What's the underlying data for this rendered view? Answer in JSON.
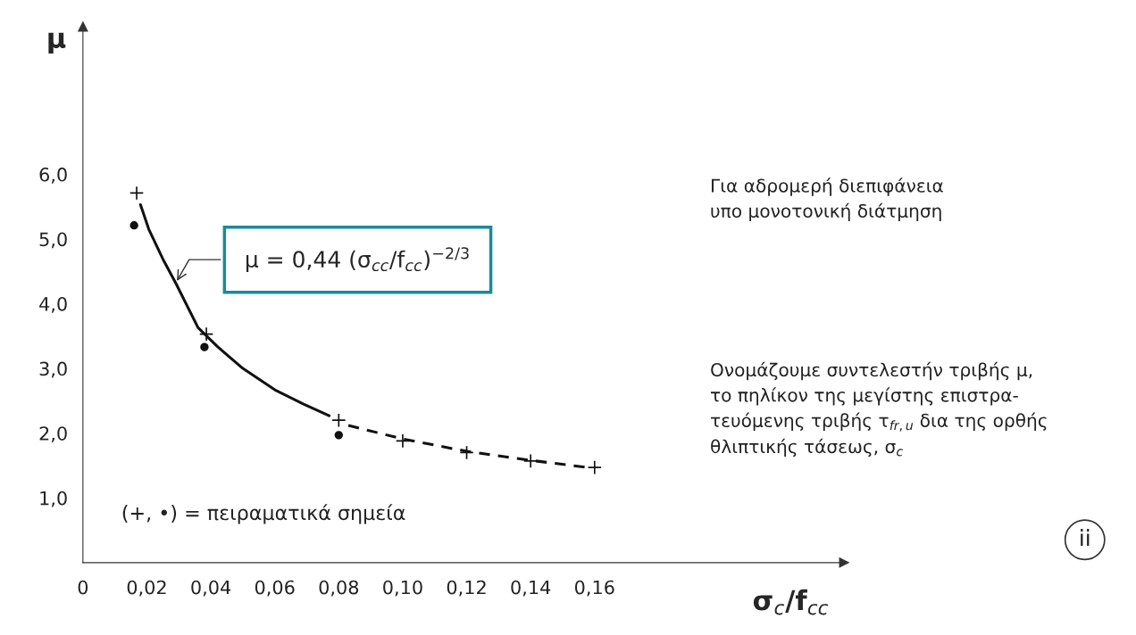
{
  "chart_data": {
    "type": "scatter",
    "xlabel": "σ$_{c}$/f$_{cc}$",
    "ylabel": "μ",
    "xlim": [
      0,
      0.238
    ],
    "ylim": [
      0,
      8.28
    ],
    "xticks": [
      {
        "value": 0,
        "label": "0"
      },
      {
        "value": 0.02,
        "label": "0,02"
      },
      {
        "value": 0.04,
        "label": "0,04"
      },
      {
        "value": 0.06,
        "label": "0,06"
      },
      {
        "value": 0.08,
        "label": "0,08"
      },
      {
        "value": 0.1,
        "label": "0,10"
      },
      {
        "value": 0.12,
        "label": "0,12"
      },
      {
        "value": 0.14,
        "label": "0,14"
      },
      {
        "value": 0.16,
        "label": "0,16"
      }
    ],
    "yticks": [
      {
        "value": 1,
        "label": "1,0"
      },
      {
        "value": 2,
        "label": "2,0"
      },
      {
        "value": 3,
        "label": "3,0"
      },
      {
        "value": 4,
        "label": "4,0"
      },
      {
        "value": 5,
        "label": "5,0"
      },
      {
        "value": 6,
        "label": "6,0"
      }
    ],
    "grid": false,
    "legend": false,
    "series": [
      {
        "type": "line",
        "color": "#111111",
        "line_style": "solid",
        "marker": "none",
        "x": [
          0.018,
          0.0206,
          0.025,
          0.029,
          0.036,
          0.042,
          0.05,
          0.06,
          0.069,
          0.077
        ],
        "values": [
          5.53,
          5.15,
          4.69,
          4.32,
          3.63,
          3.34,
          3.0,
          2.67,
          2.45,
          2.27
        ]
      },
      {
        "type": "line",
        "color": "#111111",
        "line_style": "dashed",
        "marker": "none",
        "x": [
          0.083,
          0.1,
          0.12,
          0.14,
          0.158
        ],
        "values": [
          2.12,
          1.91,
          1.72,
          1.58,
          1.47
        ]
      },
      {
        "color": "#111111",
        "marker": "cross",
        "x": [
          0.0168,
          0.0386,
          0.08,
          0.1,
          0.12,
          0.14,
          0.16
        ],
        "values": [
          5.71,
          3.53,
          2.2,
          1.88,
          1.7,
          1.57,
          1.47
        ]
      },
      {
        "color": "#111111",
        "marker": "circle",
        "x": [
          0.016,
          0.038,
          0.08
        ],
        "values": [
          5.21,
          3.33,
          1.97
        ]
      }
    ],
    "annotations": [
      {
        "text": "μ = 0,44 (σ$_{cc}$/f$_{cc}$)$^{−2/3}$",
        "x": 0.029,
        "y": 4.32
      },
      "(+, •) = πειραματικά σημεία",
      "Για αδρομερή διεπιφάνεια\nυπο μονοτονική διάτμηση",
      "Ονομάζουμε συντελεστήν τριβής μ,\nτο πηλίκον της μεγίστης επιστρα-\nτευόμενης τριβής τ$_{fr,u}$ δια της ορθής\nθλιπτικής τάσεως, σ$_{c}$",
      "ii"
    ]
  }
}
